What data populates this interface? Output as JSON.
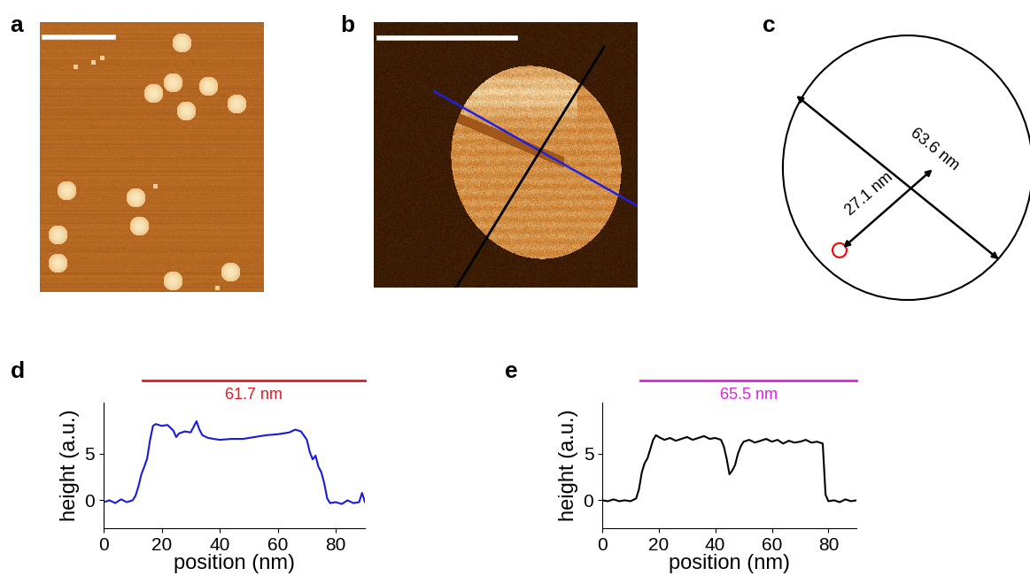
{
  "panel_labels": [
    "a",
    "b",
    "c",
    "d",
    "e"
  ],
  "diagram": {
    "diameter_label": "63.6 nm",
    "distance_label": "27.1 nm"
  },
  "chart_data": [
    {
      "type": "line",
      "xlabel": "position (nm)",
      "ylabel": "height (a.u.)",
      "xlim": [
        0,
        90
      ],
      "ylim": [
        -3,
        10.5
      ],
      "xticks": [
        0,
        20,
        40,
        60,
        80
      ],
      "yticks": [
        0,
        5
      ],
      "span_label": "61.7 nm",
      "span_color": "#e8181e",
      "x": [
        0,
        2,
        4,
        6,
        8,
        10,
        11,
        12,
        13,
        14,
        15,
        16,
        17,
        18,
        20,
        22,
        24,
        25,
        26,
        28,
        30,
        32,
        33,
        34,
        36,
        40,
        44,
        48,
        52,
        56,
        60,
        64,
        66,
        68,
        70,
        71,
        72,
        73,
        74,
        75,
        76,
        77,
        78,
        80,
        82,
        84,
        86,
        88,
        89,
        90
      ],
      "series": [
        {
          "color": "#1a1adb",
          "values": [
            -0.2,
            0,
            -0.3,
            0.1,
            -0.2,
            0,
            0.5,
            1.5,
            2.8,
            3.6,
            4.5,
            6.5,
            8,
            8.2,
            8,
            8.1,
            7.5,
            6.8,
            7.2,
            7.4,
            7.3,
            8.5,
            7.6,
            7,
            6.7,
            6.5,
            6.6,
            6.6,
            6.8,
            7,
            7.1,
            7.3,
            7.6,
            7.4,
            6.5,
            5.2,
            4.4,
            4.8,
            3.6,
            3,
            1.8,
            0.2,
            -0.3,
            -0.2,
            -0.4,
            0,
            -0.3,
            -0.2,
            0.8,
            -0.2
          ]
        }
      ]
    },
    {
      "type": "line",
      "xlabel": "position (nm)",
      "ylabel": "height (a.u.)",
      "xlim": [
        0,
        90
      ],
      "ylim": [
        -3,
        10.5
      ],
      "xticks": [
        0,
        20,
        40,
        60,
        80
      ],
      "yticks": [
        0,
        5
      ],
      "span_label": "65.5 nm",
      "span_color": "#e020e0",
      "x": [
        0,
        2,
        4,
        6,
        8,
        10,
        12,
        13,
        14,
        15,
        16,
        17,
        18,
        19,
        20,
        22,
        24,
        26,
        28,
        30,
        32,
        34,
        36,
        38,
        40,
        42,
        43,
        44,
        45,
        46,
        47,
        48,
        49,
        50,
        52,
        54,
        56,
        58,
        60,
        62,
        64,
        66,
        68,
        70,
        72,
        74,
        76,
        78,
        79,
        80,
        82,
        84,
        86,
        88,
        90
      ],
      "series": [
        {
          "color": "#000000",
          "values": [
            0,
            -0.1,
            0.1,
            -0.1,
            0,
            -0.1,
            0.2,
            1.2,
            3,
            4,
            4.5,
            5.5,
            6.5,
            7,
            6.8,
            6.5,
            6.7,
            6.4,
            6.6,
            6.8,
            6.5,
            6.7,
            6.9,
            6.6,
            6.7,
            6.5,
            5.8,
            4.5,
            2.8,
            3.2,
            3.8,
            5,
            5.8,
            6.3,
            6.5,
            6.2,
            6.4,
            6.6,
            6.3,
            6.5,
            6.1,
            6.4,
            6.2,
            6.3,
            6.5,
            6.2,
            6.3,
            6.1,
            0.6,
            -0.1,
            0,
            -0.2,
            0.1,
            -0.1,
            0
          ]
        }
      ]
    }
  ]
}
